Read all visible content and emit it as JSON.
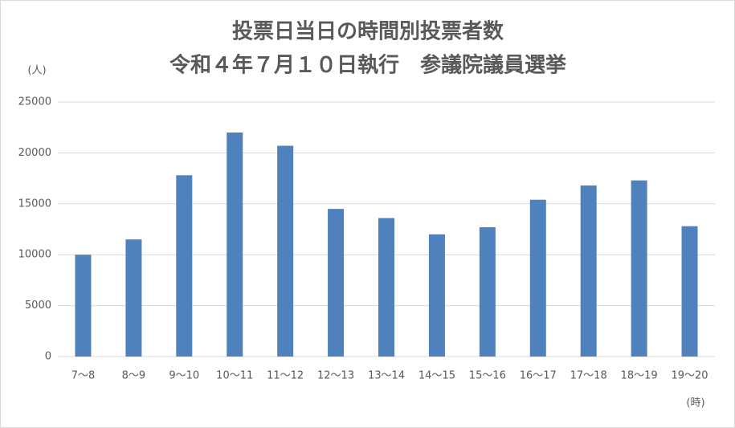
{
  "chart_data": {
    "type": "bar",
    "title": [
      "投票日当日の時間別投票者数",
      "令和４年７月１０日執行　参議院議員選挙"
    ],
    "y_label": "(人)",
    "x_label": "(時)",
    "categories": [
      "7～8",
      "8～9",
      "9～10",
      "10～11",
      "11～12",
      "12～13",
      "13～14",
      "14～15",
      "15～16",
      "16～17",
      "17～18",
      "18～19",
      "19～20"
    ],
    "values": [
      10000,
      11500,
      17800,
      22000,
      20700,
      14500,
      13600,
      12000,
      12700,
      15400,
      16800,
      17300,
      12800
    ],
    "color": "#4f81bd",
    "ylim": [
      0,
      25000
    ],
    "yticks": [
      0,
      5000,
      10000,
      15000,
      20000,
      25000
    ],
    "grid": true
  }
}
